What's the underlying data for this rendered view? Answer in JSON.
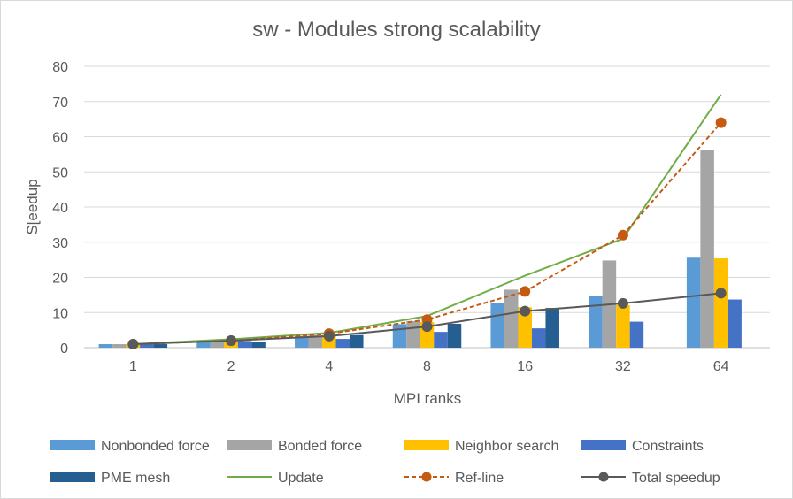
{
  "chart_data": {
    "type": "bar",
    "title": "sw - Modules strong scalability",
    "xlabel": "MPI ranks",
    "ylabel": "S[eedup",
    "categories": [
      "1",
      "2",
      "4",
      "8",
      "16",
      "32",
      "64"
    ],
    "ylim": [
      0,
      80
    ],
    "yticks": [
      0,
      10,
      20,
      30,
      40,
      50,
      60,
      70,
      80
    ],
    "grid": true,
    "legend_position": "bottom",
    "bar_series": [
      {
        "name": "Nonbonded force",
        "color": "#5b9bd5",
        "values": [
          1,
          1.6,
          3.3,
          6.7,
          12.6,
          14.8,
          25.6
        ]
      },
      {
        "name": "Bonded force",
        "color": "#a5a5a5",
        "values": [
          1,
          1.9,
          3.6,
          7.6,
          16.5,
          24.8,
          56.2
        ]
      },
      {
        "name": "Neighbor search",
        "color": "#ffc000",
        "values": [
          1,
          2.0,
          3.7,
          7.3,
          11.5,
          12.1,
          25.4
        ]
      },
      {
        "name": "Constraints",
        "color": "#4472c4",
        "values": [
          1,
          1.9,
          2.5,
          4.5,
          5.5,
          7.4,
          13.7
        ]
      },
      {
        "name": "PME mesh",
        "color": "#255e91",
        "values": [
          1,
          1.6,
          3.6,
          6.8,
          11.3,
          null,
          null
        ]
      }
    ],
    "line_series": [
      {
        "name": "Update",
        "color": "#70ad47",
        "style": "solid",
        "marker": "none",
        "values": [
          1,
          2.4,
          4.2,
          9.0,
          20.5,
          31,
          72
        ]
      },
      {
        "name": "Ref-line",
        "color": "#c55a11",
        "style": "dashed",
        "marker": "circle",
        "values": [
          1,
          2,
          4,
          8,
          16,
          32,
          64
        ]
      },
      {
        "name": "Total speedup",
        "color": "#595959",
        "style": "solid",
        "marker": "circle",
        "values": [
          1,
          2.0,
          3.3,
          6.0,
          10.4,
          12.6,
          15.5
        ]
      }
    ]
  }
}
